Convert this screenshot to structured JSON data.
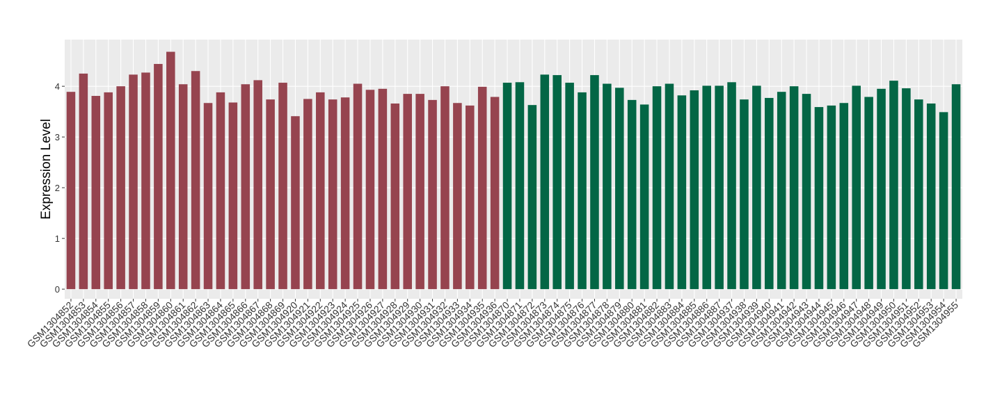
{
  "chart_data": {
    "type": "bar",
    "y_label": "Expression Level",
    "categories": [
      "GSM1304852",
      "GSM1304853",
      "GSM1304854",
      "GSM1304855",
      "GSM1304856",
      "GSM1304857",
      "GSM1304858",
      "GSM1304859",
      "GSM1304860",
      "GSM1304861",
      "GSM1304862",
      "GSM1304863",
      "GSM1304864",
      "GSM1304865",
      "GSM1304866",
      "GSM1304867",
      "GSM1304868",
      "GSM1304869",
      "GSM1304920",
      "GSM1304921",
      "GSM1304922",
      "GSM1304923",
      "GSM1304924",
      "GSM1304925",
      "GSM1304926",
      "GSM1304927",
      "GSM1304928",
      "GSM1304929",
      "GSM1304930",
      "GSM1304931",
      "GSM1304932",
      "GSM1304933",
      "GSM1304934",
      "GSM1304935",
      "GSM1304936",
      "GSM1304870",
      "GSM1304871",
      "GSM1304872",
      "GSM1304873",
      "GSM1304874",
      "GSM1304875",
      "GSM1304876",
      "GSM1304877",
      "GSM1304878",
      "GSM1304879",
      "GSM1304880",
      "GSM1304881",
      "GSM1304882",
      "GSM1304883",
      "GSM1304884",
      "GSM1304885",
      "GSM1304886",
      "GSM1304887",
      "GSM1304937",
      "GSM1304938",
      "GSM1304939",
      "GSM1304940",
      "GSM1304941",
      "GSM1304942",
      "GSM1304943",
      "GSM1304944",
      "GSM1304945",
      "GSM1304946",
      "GSM1304947",
      "GSM1304948",
      "GSM1304949",
      "GSM1304950",
      "GSM1304951",
      "GSM1304952",
      "GSM1304953",
      "GSM1304954",
      "GSM1304955"
    ],
    "values": [
      3.89,
      4.25,
      3.81,
      3.88,
      4.0,
      4.23,
      4.27,
      4.44,
      4.68,
      4.04,
      4.3,
      3.67,
      3.88,
      3.68,
      4.04,
      4.12,
      3.74,
      4.07,
      3.41,
      3.75,
      3.88,
      3.74,
      3.78,
      4.05,
      3.93,
      3.95,
      3.66,
      3.85,
      3.85,
      3.73,
      4.0,
      3.67,
      3.62,
      3.99,
      3.79,
      4.07,
      4.08,
      3.63,
      4.23,
      4.22,
      4.07,
      3.88,
      4.22,
      4.05,
      3.97,
      3.73,
      3.64,
      4.0,
      4.05,
      3.82,
      3.92,
      4.01,
      4.01,
      4.08,
      3.74,
      4.01,
      3.77,
      3.89,
      4.0,
      3.85,
      3.59,
      3.62,
      3.67,
      4.01,
      3.79,
      3.95,
      4.11,
      3.96,
      3.74,
      3.66,
      3.49,
      4.04
    ],
    "colors": [
      "#96444f",
      "#96444f",
      "#96444f",
      "#96444f",
      "#96444f",
      "#96444f",
      "#96444f",
      "#96444f",
      "#96444f",
      "#96444f",
      "#96444f",
      "#96444f",
      "#96444f",
      "#96444f",
      "#96444f",
      "#96444f",
      "#96444f",
      "#96444f",
      "#96444f",
      "#96444f",
      "#96444f",
      "#96444f",
      "#96444f",
      "#96444f",
      "#96444f",
      "#96444f",
      "#96444f",
      "#96444f",
      "#96444f",
      "#96444f",
      "#96444f",
      "#96444f",
      "#96444f",
      "#96444f",
      "#96444f",
      "#036645",
      "#036645",
      "#036645",
      "#036645",
      "#036645",
      "#036645",
      "#036645",
      "#036645",
      "#036645",
      "#036645",
      "#036645",
      "#036645",
      "#036645",
      "#036645",
      "#036645",
      "#036645",
      "#036645",
      "#036645",
      "#036645",
      "#036645",
      "#036645",
      "#036645",
      "#036645",
      "#036645",
      "#036645",
      "#036645",
      "#036645",
      "#036645",
      "#036645",
      "#036645",
      "#036645",
      "#036645",
      "#036645",
      "#036645",
      "#036645",
      "#036645",
      "#036645"
    ],
    "ylim": [
      -0.19,
      4.92
    ],
    "yticks": [
      0,
      1,
      2,
      3,
      4
    ],
    "grid": true
  }
}
